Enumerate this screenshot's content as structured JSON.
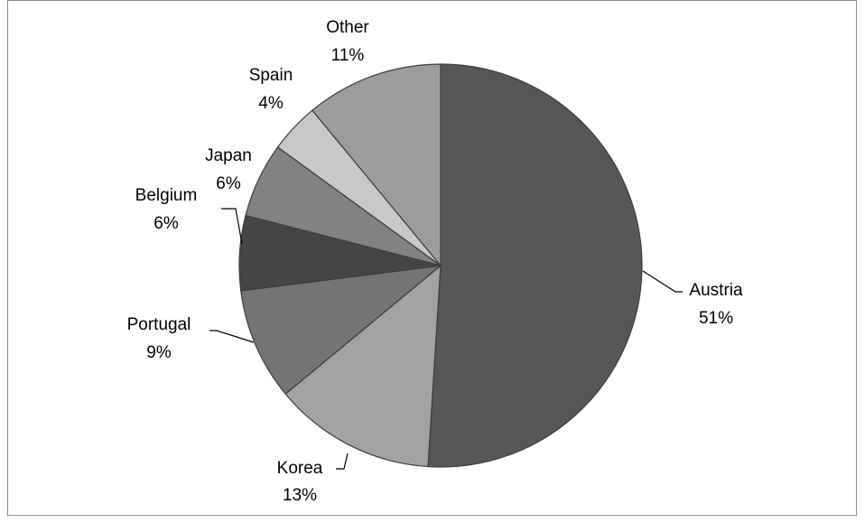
{
  "chart_data": {
    "type": "pie",
    "start_angle_deg": 0,
    "direction": "clockwise",
    "slices": [
      {
        "label": "Austria",
        "percent_label": "51%",
        "value": 51,
        "color": "#575757"
      },
      {
        "label": "Korea",
        "percent_label": "13%",
        "value": 13,
        "color": "#a2a2a2"
      },
      {
        "label": "Portugal",
        "percent_label": "9%",
        "value": 9,
        "color": "#747474"
      },
      {
        "label": "Belgium",
        "percent_label": "6%",
        "value": 6,
        "color": "#454545"
      },
      {
        "label": "Japan",
        "percent_label": "6%",
        "value": 6,
        "color": "#828282"
      },
      {
        "label": "Spain",
        "percent_label": "4%",
        "value": 4,
        "color": "#c8c8c8"
      },
      {
        "label": "Other",
        "percent_label": "11%",
        "value": 11,
        "color": "#9c9c9c"
      }
    ],
    "legend": "none",
    "data_labels": "outside with leader lines"
  }
}
